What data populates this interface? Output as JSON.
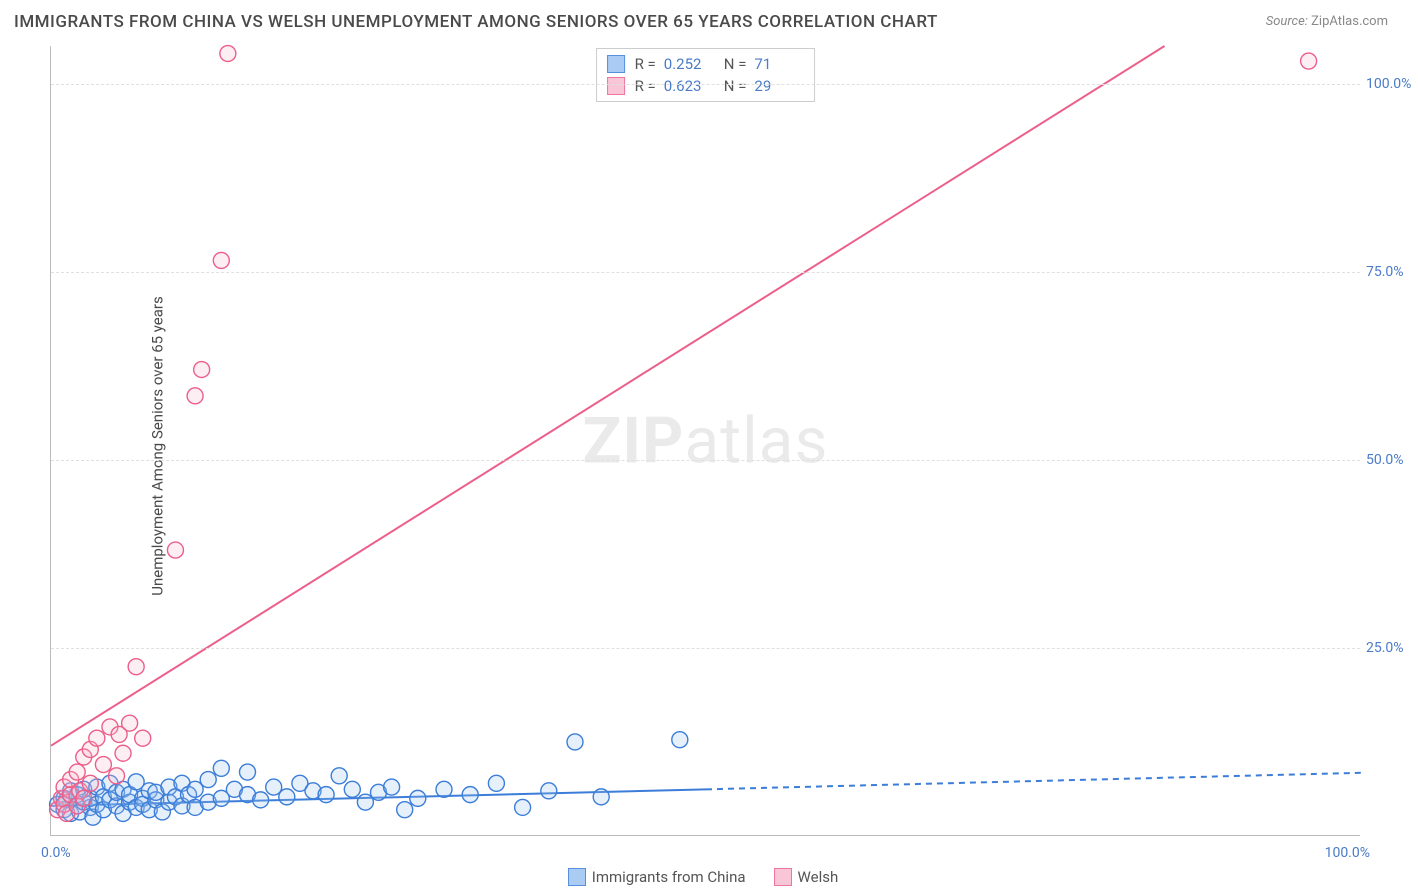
{
  "title": "IMMIGRANTS FROM CHINA VS WELSH UNEMPLOYMENT AMONG SENIORS OVER 65 YEARS CORRELATION CHART",
  "source_label": "Source:",
  "source_value": "ZipAtlas.com",
  "ylabel": "Unemployment Among Seniors over 65 years",
  "watermark_a": "ZIP",
  "watermark_b": "atlas",
  "chart": {
    "type": "scatter",
    "background_color": "#ffffff",
    "grid_color": "#e0e0e0",
    "axis_color": "#bbbbbb",
    "tick_color": "#4a7bc8",
    "tick_fontsize": 14,
    "label_fontsize": 15,
    "title_fontsize": 17,
    "xlim": [
      0,
      100
    ],
    "ylim": [
      0,
      105
    ],
    "yticks": [
      25,
      50,
      75,
      100
    ],
    "ytick_labels": [
      "25.0%",
      "50.0%",
      "75.0%",
      "100.0%"
    ],
    "xtick_min": "0.0%",
    "xtick_max": "100.0%",
    "marker_radius": 8,
    "marker_stroke_width": 1.4,
    "marker_fill_opacity": 0.25,
    "line_width": 2,
    "series": [
      {
        "name": "Immigrants from China",
        "stroke": "#3b7dd8",
        "fill": "#9cc3f0",
        "R_label": "R =",
        "R": "0.252",
        "N_label": "N =",
        "N": "71",
        "trend": {
          "x1": 0,
          "y1": 4.0,
          "x2": 50,
          "y2": 6.2,
          "dash_x1": 50,
          "dash_y1": 6.2,
          "dash_x2": 100,
          "dash_y2": 8.4
        },
        "points": [
          [
            0.5,
            4.2
          ],
          [
            1,
            5
          ],
          [
            1,
            3.5
          ],
          [
            1.2,
            4.8
          ],
          [
            1.5,
            6
          ],
          [
            1.5,
            3
          ],
          [
            2,
            4
          ],
          [
            2,
            5.5
          ],
          [
            2.2,
            3.2
          ],
          [
            2.5,
            4.5
          ],
          [
            2.5,
            6.2
          ],
          [
            3,
            3.8
          ],
          [
            3,
            5
          ],
          [
            3.2,
            2.5
          ],
          [
            3.5,
            4.2
          ],
          [
            3.5,
            6.5
          ],
          [
            4,
            5.2
          ],
          [
            4,
            3.5
          ],
          [
            4.5,
            4.8
          ],
          [
            4.5,
            7
          ],
          [
            5,
            4
          ],
          [
            5,
            5.8
          ],
          [
            5.5,
            3
          ],
          [
            5.5,
            6.2
          ],
          [
            6,
            4.5
          ],
          [
            6,
            5.5
          ],
          [
            6.5,
            3.8
          ],
          [
            6.5,
            7.2
          ],
          [
            7,
            5
          ],
          [
            7,
            4.2
          ],
          [
            7.5,
            6
          ],
          [
            7.5,
            3.5
          ],
          [
            8,
            4.8
          ],
          [
            8,
            5.8
          ],
          [
            8.5,
            3.2
          ],
          [
            9,
            4.5
          ],
          [
            9,
            6.5
          ],
          [
            9.5,
            5.2
          ],
          [
            10,
            4
          ],
          [
            10,
            7
          ],
          [
            10.5,
            5.5
          ],
          [
            11,
            3.8
          ],
          [
            11,
            6.2
          ],
          [
            12,
            4.5
          ],
          [
            12,
            7.5
          ],
          [
            13,
            5
          ],
          [
            13,
            9
          ],
          [
            14,
            6.2
          ],
          [
            15,
            5.5
          ],
          [
            15,
            8.5
          ],
          [
            16,
            4.8
          ],
          [
            17,
            6.5
          ],
          [
            18,
            5.2
          ],
          [
            19,
            7
          ],
          [
            20,
            6
          ],
          [
            21,
            5.5
          ],
          [
            22,
            8
          ],
          [
            23,
            6.2
          ],
          [
            24,
            4.5
          ],
          [
            25,
            5.8
          ],
          [
            26,
            6.5
          ],
          [
            27,
            3.5
          ],
          [
            28,
            5
          ],
          [
            30,
            6.2
          ],
          [
            32,
            5.5
          ],
          [
            34,
            7
          ],
          [
            36,
            3.8
          ],
          [
            38,
            6
          ],
          [
            40,
            12.5
          ],
          [
            42,
            5.2
          ],
          [
            48,
            12.8
          ]
        ]
      },
      {
        "name": "Welsh",
        "stroke": "#ec5f8a",
        "fill": "#f7bdd0",
        "R_label": "R =",
        "R": "0.623",
        "N_label": "N =",
        "N": "29",
        "trend": {
          "x1": 0,
          "y1": 12,
          "x2": 85,
          "y2": 105
        },
        "points": [
          [
            0.5,
            3.5
          ],
          [
            0.8,
            5
          ],
          [
            1,
            4.2
          ],
          [
            1,
            6.5
          ],
          [
            1.2,
            3
          ],
          [
            1.5,
            5.5
          ],
          [
            1.5,
            7.5
          ],
          [
            2,
            4
          ],
          [
            2,
            8.5
          ],
          [
            2.2,
            6
          ],
          [
            2.5,
            10.5
          ],
          [
            2.5,
            5
          ],
          [
            3,
            11.5
          ],
          [
            3,
            7
          ],
          [
            3.5,
            13
          ],
          [
            4,
            9.5
          ],
          [
            4.5,
            14.5
          ],
          [
            5,
            8
          ],
          [
            5.2,
            13.5
          ],
          [
            5.5,
            11
          ],
          [
            6,
            15
          ],
          [
            6.5,
            22.5
          ],
          [
            7,
            13
          ],
          [
            9.5,
            38
          ],
          [
            11,
            58.5
          ],
          [
            11.5,
            62
          ],
          [
            13,
            76.5
          ],
          [
            13.5,
            104
          ],
          [
            96,
            103
          ]
        ]
      }
    ]
  }
}
